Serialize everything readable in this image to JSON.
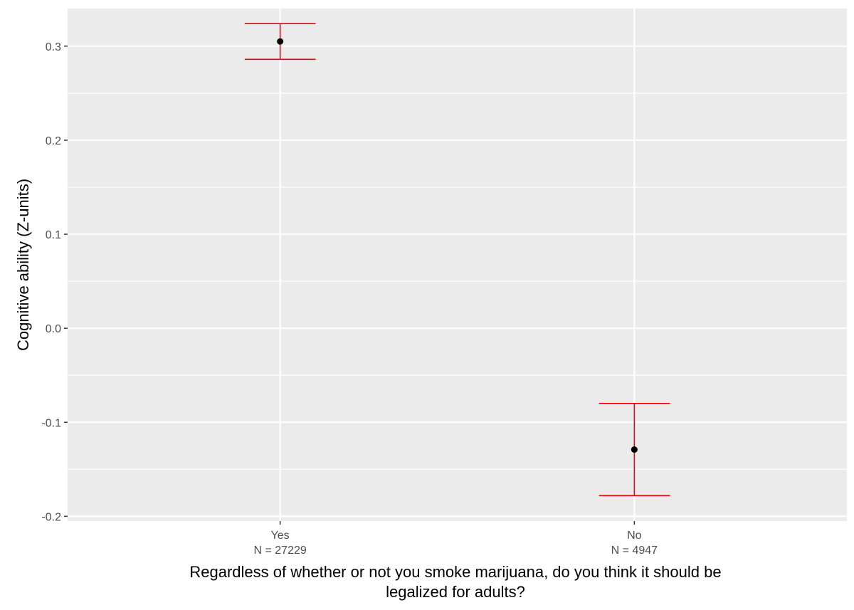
{
  "chart_data": {
    "type": "scatter",
    "title": "",
    "xlabel_lines": [
      "Regardless of whether or not you smoke marijuana, do you think it should be",
      "legalized for adults?"
    ],
    "ylabel": "Cognitive ability (Z-units)",
    "ylim": [
      -0.205,
      0.34
    ],
    "y_ticks": [
      -0.2,
      -0.1,
      0.0,
      0.1,
      0.2,
      0.3
    ],
    "y_tick_labels": [
      "-0.2",
      "-0.1",
      "0.0",
      "0.1",
      "0.2",
      "0.3"
    ],
    "grid": true,
    "points": [
      {
        "category": "Yes",
        "sublabel": "N = 27229",
        "mean": 0.305,
        "lower": 0.286,
        "upper": 0.324
      },
      {
        "category": "No",
        "sublabel": "N = 4947",
        "mean": -0.129,
        "lower": -0.178,
        "upper": -0.08
      }
    ],
    "colors": {
      "panel": "#ebebeb",
      "grid": "#ffffff",
      "errorbar": "#e8000b",
      "point": "#000000"
    }
  }
}
